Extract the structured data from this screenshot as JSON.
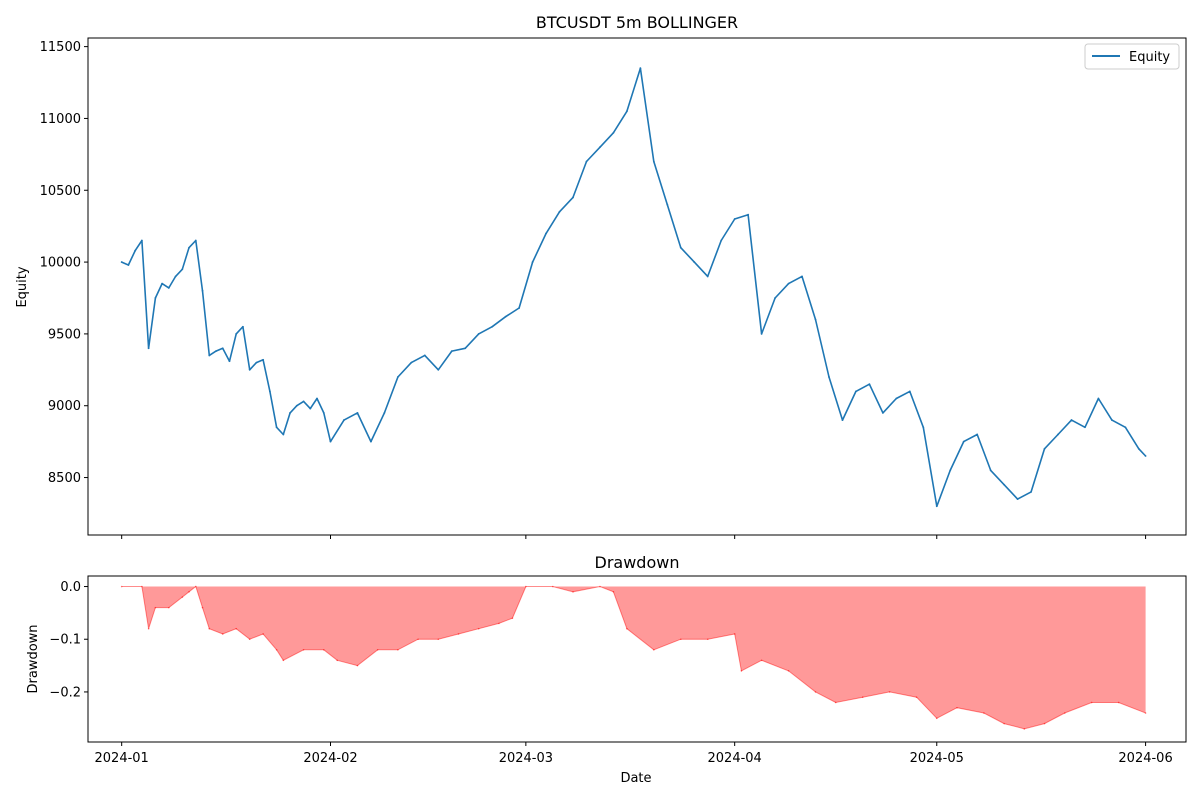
{
  "chart_data": [
    {
      "type": "line",
      "title": "BTCUSDT 5m BOLLINGER",
      "xlabel": "",
      "ylabel": "Equity",
      "xlim": [
        "2023-12-27",
        "2024-06-07"
      ],
      "ylim": [
        8100,
        11560
      ],
      "yticks": [
        8500,
        9000,
        9500,
        10000,
        10500,
        11000,
        11500
      ],
      "ytick_labels": [
        "8500",
        "9000",
        "9500",
        "10000",
        "10500",
        "11000",
        "11500"
      ],
      "legend": {
        "entries": [
          "Equity"
        ],
        "placement": "top-right"
      },
      "grid": false,
      "series": [
        {
          "name": "Equity",
          "color": "#1f77b4",
          "x": [
            "2024-01-01",
            "2024-01-02",
            "2024-01-03",
            "2024-01-04",
            "2024-01-05",
            "2024-01-06",
            "2024-01-07",
            "2024-01-08",
            "2024-01-09",
            "2024-01-10",
            "2024-01-11",
            "2024-01-12",
            "2024-01-13",
            "2024-01-14",
            "2024-01-15",
            "2024-01-16",
            "2024-01-17",
            "2024-01-18",
            "2024-01-19",
            "2024-01-20",
            "2024-01-21",
            "2024-01-22",
            "2024-01-23",
            "2024-01-24",
            "2024-01-25",
            "2024-01-26",
            "2024-01-27",
            "2024-01-28",
            "2024-01-29",
            "2024-01-30",
            "2024-01-31",
            "2024-02-01",
            "2024-02-03",
            "2024-02-05",
            "2024-02-07",
            "2024-02-09",
            "2024-02-11",
            "2024-02-13",
            "2024-02-15",
            "2024-02-17",
            "2024-02-19",
            "2024-02-21",
            "2024-02-23",
            "2024-02-25",
            "2024-02-27",
            "2024-02-29",
            "2024-03-02",
            "2024-03-04",
            "2024-03-06",
            "2024-03-08",
            "2024-03-10",
            "2024-03-12",
            "2024-03-14",
            "2024-03-16",
            "2024-03-18",
            "2024-03-20",
            "2024-03-22",
            "2024-03-24",
            "2024-03-26",
            "2024-03-28",
            "2024-03-30",
            "2024-04-01",
            "2024-04-03",
            "2024-04-05",
            "2024-04-07",
            "2024-04-09",
            "2024-04-11",
            "2024-04-13",
            "2024-04-15",
            "2024-04-17",
            "2024-04-19",
            "2024-04-21",
            "2024-04-23",
            "2024-04-25",
            "2024-04-27",
            "2024-04-29",
            "2024-05-01",
            "2024-05-03",
            "2024-05-05",
            "2024-05-07",
            "2024-05-09",
            "2024-05-11",
            "2024-05-13",
            "2024-05-15",
            "2024-05-17",
            "2024-05-19",
            "2024-05-21",
            "2024-05-23",
            "2024-05-25",
            "2024-05-27",
            "2024-05-29",
            "2024-05-31",
            "2024-06-01"
          ],
          "values": [
            10000,
            9980,
            10080,
            10150,
            9400,
            9750,
            9850,
            9820,
            9900,
            9950,
            10100,
            10150,
            9800,
            9350,
            9380,
            9400,
            9310,
            9500,
            9550,
            9250,
            9300,
            9320,
            9100,
            8850,
            8800,
            8950,
            9000,
            9030,
            8980,
            9050,
            8950,
            8750,
            8900,
            8950,
            8750,
            8950,
            9200,
            9300,
            9350,
            9250,
            9380,
            9400,
            9500,
            9550,
            9620,
            9680,
            10000,
            10200,
            10350,
            10450,
            10700,
            10800,
            10900,
            11050,
            11350,
            10700,
            10400,
            10100,
            10000,
            9900,
            10150,
            10300,
            10330,
            9500,
            9750,
            9850,
            9900,
            9600,
            9200,
            8900,
            9100,
            9150,
            8950,
            9050,
            9100,
            8850,
            8300,
            8550,
            8750,
            8800,
            8550,
            8450,
            8350,
            8400,
            8700,
            8800,
            8900,
            8850,
            9050,
            8900,
            8850,
            8700,
            8650
          ]
        }
      ]
    },
    {
      "type": "area",
      "title": "Drawdown",
      "xlabel": "Date",
      "ylabel": "Drawdown",
      "xlim": [
        "2023-12-27",
        "2024-06-07"
      ],
      "ylim": [
        -0.295,
        0.02
      ],
      "yticks": [
        0.0,
        -0.1,
        -0.2
      ],
      "ytick_labels": [
        "0.0",
        "−0.1",
        "−0.2"
      ],
      "xticks": [
        "2024-01-01",
        "2024-02-01",
        "2024-03-01",
        "2024-04-01",
        "2024-05-01",
        "2024-06-01"
      ],
      "xtick_labels": [
        "2024-01",
        "2024-02",
        "2024-03",
        "2024-04",
        "2024-05",
        "2024-06"
      ],
      "grid": false,
      "series": [
        {
          "color": "#ff0000",
          "fill_alpha": 0.4,
          "x": [
            "2024-01-01",
            "2024-01-04",
            "2024-01-05",
            "2024-01-06",
            "2024-01-08",
            "2024-01-10",
            "2024-01-11",
            "2024-01-12",
            "2024-01-13",
            "2024-01-14",
            "2024-01-16",
            "2024-01-18",
            "2024-01-20",
            "2024-01-22",
            "2024-01-24",
            "2024-01-25",
            "2024-01-28",
            "2024-01-31",
            "2024-02-02",
            "2024-02-05",
            "2024-02-08",
            "2024-02-11",
            "2024-02-14",
            "2024-02-17",
            "2024-02-20",
            "2024-02-23",
            "2024-02-26",
            "2024-02-28",
            "2024-03-01",
            "2024-03-05",
            "2024-03-08",
            "2024-03-12",
            "2024-03-14",
            "2024-03-16",
            "2024-03-20",
            "2024-03-24",
            "2024-03-28",
            "2024-04-01",
            "2024-04-02",
            "2024-04-05",
            "2024-04-09",
            "2024-04-13",
            "2024-04-16",
            "2024-04-20",
            "2024-04-24",
            "2024-04-28",
            "2024-05-01",
            "2024-05-04",
            "2024-05-08",
            "2024-05-11",
            "2024-05-14",
            "2024-05-17",
            "2024-05-20",
            "2024-05-24",
            "2024-05-28",
            "2024-06-01"
          ],
          "values": [
            0.0,
            0.0,
            -0.08,
            -0.04,
            -0.04,
            -0.02,
            -0.01,
            -0.0,
            -0.04,
            -0.08,
            -0.09,
            -0.08,
            -0.1,
            -0.09,
            -0.12,
            -0.14,
            -0.12,
            -0.12,
            -0.14,
            -0.15,
            -0.12,
            -0.12,
            -0.1,
            -0.1,
            -0.09,
            -0.08,
            -0.07,
            -0.06,
            0.0,
            0.0,
            -0.01,
            0.0,
            -0.01,
            -0.08,
            -0.12,
            -0.1,
            -0.1,
            -0.09,
            -0.16,
            -0.14,
            -0.16,
            -0.2,
            -0.22,
            -0.21,
            -0.2,
            -0.21,
            -0.25,
            -0.23,
            -0.24,
            -0.26,
            -0.27,
            -0.26,
            -0.24,
            -0.22,
            -0.22,
            -0.24
          ]
        }
      ]
    }
  ]
}
